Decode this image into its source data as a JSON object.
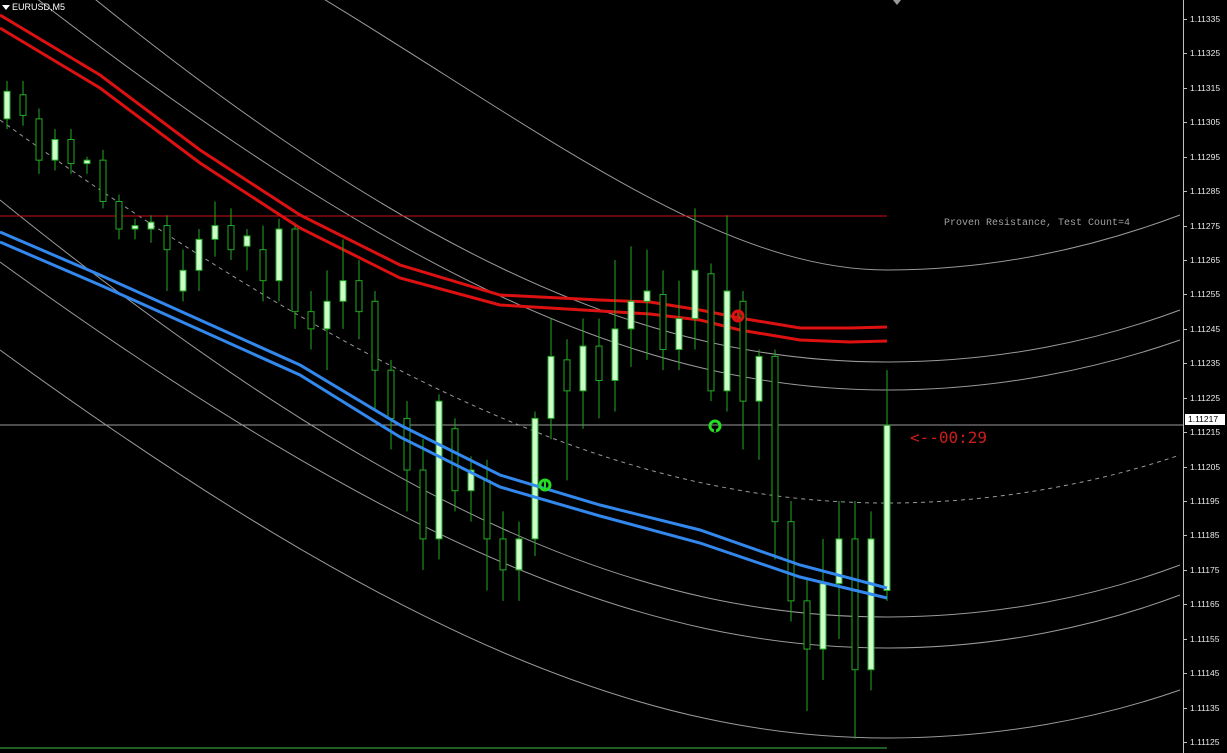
{
  "window": {
    "symbol": "EURUSD,M5"
  },
  "colors": {
    "background": "#000000",
    "bull_body": "#ccffcc",
    "bear_body": "#000000",
    "wick": "#22aa22",
    "ma_red": "#dd1111",
    "ma_blue": "#3388ee",
    "resistance_line": "#cc1111",
    "channel": "#9a9a9a"
  },
  "annotations": {
    "zone_label": "Proven Resistance, Test Count=4",
    "timer": "<--00:29"
  },
  "price_axis": {
    "ticks": [
      "1.11335",
      "1.11325",
      "1.11315",
      "1.11305",
      "1.11295",
      "1.11285",
      "1.11275",
      "1.11265",
      "1.11255",
      "1.11245",
      "1.11235",
      "1.11225",
      "1.11215",
      "1.11205",
      "1.11195",
      "1.11185",
      "1.11175",
      "1.11165",
      "1.11155",
      "1.11145",
      "1.11135",
      "1.11125"
    ],
    "current_price": "1.11217",
    "resistance_price": 1.11278
  },
  "candles": [
    [
      1.11306,
      1.11317,
      1.11303,
      1.11314
    ],
    [
      1.11313,
      1.11317,
      1.11304,
      1.11307
    ],
    [
      1.11306,
      1.11309,
      1.1129,
      1.11294
    ],
    [
      1.11294,
      1.11303,
      1.11291,
      1.113
    ],
    [
      1.113,
      1.11303,
      1.1129,
      1.11293
    ],
    [
      1.11293,
      1.11295,
      1.1129,
      1.11294
    ],
    [
      1.11294,
      1.11297,
      1.1128,
      1.11282
    ],
    [
      1.11282,
      1.11284,
      1.11271,
      1.11274
    ],
    [
      1.11274,
      1.11277,
      1.11271,
      1.11275
    ],
    [
      1.11274,
      1.11278,
      1.1127,
      1.11276
    ],
    [
      1.11275,
      1.11278,
      1.11256,
      1.11268
    ],
    [
      1.11256,
      1.11268,
      1.11253,
      1.11262
    ],
    [
      1.11262,
      1.11274,
      1.11256,
      1.11271
    ],
    [
      1.11271,
      1.11282,
      1.11266,
      1.11275
    ],
    [
      1.11275,
      1.1128,
      1.11265,
      1.11268
    ],
    [
      1.11269,
      1.11274,
      1.11262,
      1.11272
    ],
    [
      1.11268,
      1.11275,
      1.11253,
      1.11259
    ],
    [
      1.11259,
      1.11277,
      1.11253,
      1.11274
    ],
    [
      1.11274,
      1.11275,
      1.11245,
      1.1125
    ],
    [
      1.1125,
      1.11256,
      1.11239,
      1.11245
    ],
    [
      1.11245,
      1.11262,
      1.11233,
      1.11253
    ],
    [
      1.11253,
      1.11271,
      1.11245,
      1.11259
    ],
    [
      1.11259,
      1.11265,
      1.11242,
      1.1125
    ],
    [
      1.11253,
      1.11256,
      1.11221,
      1.11233
    ],
    [
      1.11233,
      1.11236,
      1.1121,
      1.11219
    ],
    [
      1.11219,
      1.11224,
      1.11192,
      1.11204
    ],
    [
      1.11204,
      1.11213,
      1.11175,
      1.11184
    ],
    [
      1.11184,
      1.11226,
      1.11178,
      1.11224
    ],
    [
      1.11216,
      1.11219,
      1.11192,
      1.11198
    ],
    [
      1.11198,
      1.11208,
      1.11189,
      1.11204
    ],
    [
      1.11201,
      1.11207,
      1.11169,
      1.11184
    ],
    [
      1.11184,
      1.11192,
      1.11166,
      1.11175
    ],
    [
      1.11175,
      1.11189,
      1.11166,
      1.11184
    ],
    [
      1.11184,
      1.11221,
      1.11179,
      1.11219
    ],
    [
      1.11219,
      1.11248,
      1.11213,
      1.11237
    ],
    [
      1.11236,
      1.11242,
      1.11201,
      1.11227
    ],
    [
      1.11227,
      1.11248,
      1.11216,
      1.1124
    ],
    [
      1.1124,
      1.11248,
      1.11219,
      1.1123
    ],
    [
      1.1123,
      1.11265,
      1.11221,
      1.11245
    ],
    [
      1.11245,
      1.11269,
      1.11234,
      1.11253
    ],
    [
      1.11253,
      1.11268,
      1.11236,
      1.11256
    ],
    [
      1.11255,
      1.11262,
      1.11233,
      1.11239
    ],
    [
      1.11239,
      1.11259,
      1.11233,
      1.11248
    ],
    [
      1.11248,
      1.1128,
      1.11239,
      1.11262
    ],
    [
      1.11261,
      1.11264,
      1.11224,
      1.11227
    ],
    [
      1.11227,
      1.11278,
      1.11221,
      1.11256
    ],
    [
      1.11253,
      1.11256,
      1.1121,
      1.11224
    ],
    [
      1.11224,
      1.11239,
      1.11207,
      1.11237
    ],
    [
      1.11237,
      1.11239,
      1.11178,
      1.11189
    ],
    [
      1.11189,
      1.11195,
      1.1116,
      1.11166
    ],
    [
      1.11166,
      1.11172,
      1.11134,
      1.11152
    ],
    [
      1.11152,
      1.11184,
      1.11143,
      1.11171
    ],
    [
      1.11171,
      1.11195,
      1.11155,
      1.11184
    ],
    [
      1.11184,
      1.11195,
      1.11126,
      1.11146
    ],
    [
      1.11146,
      1.11192,
      1.1114,
      1.11184
    ],
    [
      1.11169,
      1.11233,
      1.11166,
      1.11217
    ]
  ]
}
